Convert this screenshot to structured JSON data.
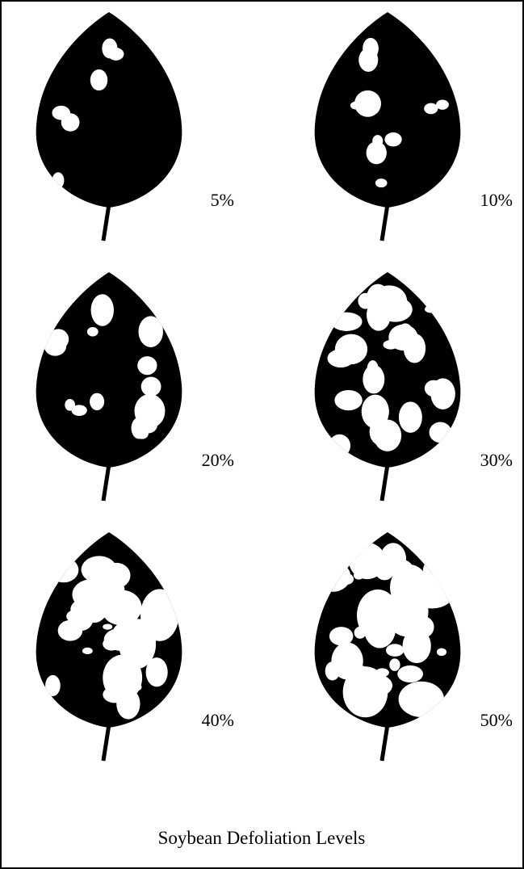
{
  "panels": [
    {
      "label": "5%"
    },
    {
      "label": "10%"
    },
    {
      "label": "20%"
    },
    {
      "label": "30%"
    },
    {
      "label": "40%"
    },
    {
      "label": "50%"
    }
  ],
  "caption": "Soybean Defoliation Levels"
}
